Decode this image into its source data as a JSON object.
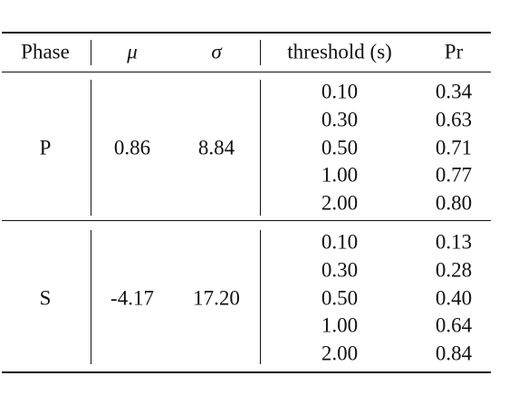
{
  "table": {
    "header": [
      "Phase",
      "μ",
      "σ",
      "threshold (s)",
      "Pr"
    ],
    "groups": [
      {
        "phase": "P",
        "mu": "0.86",
        "sigma": "8.84",
        "rows": [
          [
            "0.10",
            "0.34"
          ],
          [
            "0.30",
            "0.63"
          ],
          [
            "0.50",
            "0.71"
          ],
          [
            "1.00",
            "0.77"
          ],
          [
            "2.00",
            "0.80"
          ]
        ]
      },
      {
        "phase": "S",
        "mu": "-4.17",
        "sigma": "17.20",
        "rows": [
          [
            "0.10",
            "0.13"
          ],
          [
            "0.30",
            "0.28"
          ],
          [
            "0.50",
            "0.40"
          ],
          [
            "1.00",
            "0.64"
          ],
          [
            "2.00",
            "0.84"
          ]
        ]
      }
    ]
  }
}
